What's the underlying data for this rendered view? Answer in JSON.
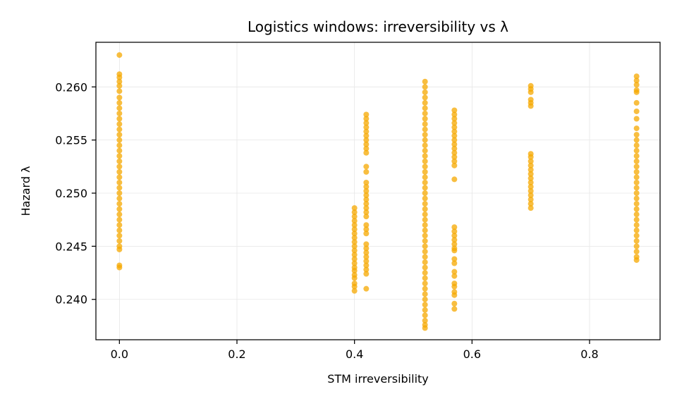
{
  "chart_data": {
    "type": "scatter",
    "title": "Logistics windows: irreversibility vs λ",
    "xlabel": "STM irreversibility",
    "ylabel": "Hazard λ",
    "xlim": [
      -0.04,
      0.92
    ],
    "ylim": [
      0.2362,
      0.2642
    ],
    "xticks": [
      0.0,
      0.2,
      0.4,
      0.6,
      0.8
    ],
    "xtick_labels": [
      "0.0",
      "0.2",
      "0.4",
      "0.6",
      "0.8"
    ],
    "yticks": [
      0.24,
      0.245,
      0.25,
      0.255,
      0.26
    ],
    "ytick_labels": [
      "0.240",
      "0.245",
      "0.250",
      "0.255",
      "0.260"
    ],
    "grid": true,
    "marker_color": "#f5a800",
    "series": [
      {
        "points": [
          [
            0.0,
            0.263
          ],
          [
            0.0,
            0.2612
          ],
          [
            0.0,
            0.2609
          ],
          [
            0.0,
            0.2605
          ],
          [
            0.0,
            0.2601
          ],
          [
            0.0,
            0.2596
          ],
          [
            0.0,
            0.259
          ],
          [
            0.0,
            0.2585
          ],
          [
            0.0,
            0.258
          ],
          [
            0.0,
            0.2575
          ],
          [
            0.0,
            0.257
          ],
          [
            0.0,
            0.2565
          ],
          [
            0.0,
            0.256
          ],
          [
            0.0,
            0.2555
          ],
          [
            0.0,
            0.255
          ],
          [
            0.0,
            0.2545
          ],
          [
            0.0,
            0.254
          ],
          [
            0.0,
            0.2535
          ],
          [
            0.0,
            0.253
          ],
          [
            0.0,
            0.2525
          ],
          [
            0.0,
            0.252
          ],
          [
            0.0,
            0.2515
          ],
          [
            0.0,
            0.251
          ],
          [
            0.0,
            0.2505
          ],
          [
            0.0,
            0.25
          ],
          [
            0.0,
            0.2495
          ],
          [
            0.0,
            0.249
          ],
          [
            0.0,
            0.2485
          ],
          [
            0.0,
            0.248
          ],
          [
            0.0,
            0.2475
          ],
          [
            0.0,
            0.247
          ],
          [
            0.0,
            0.2465
          ],
          [
            0.0,
            0.246
          ],
          [
            0.0,
            0.2455
          ],
          [
            0.0,
            0.245
          ],
          [
            0.0,
            0.2447
          ],
          [
            0.0,
            0.2432
          ],
          [
            0.0,
            0.243
          ],
          [
            0.4,
            0.2486
          ],
          [
            0.4,
            0.2482
          ],
          [
            0.4,
            0.2478
          ],
          [
            0.4,
            0.2474
          ],
          [
            0.4,
            0.247
          ],
          [
            0.4,
            0.2466
          ],
          [
            0.4,
            0.2462
          ],
          [
            0.4,
            0.2458
          ],
          [
            0.4,
            0.2454
          ],
          [
            0.4,
            0.245
          ],
          [
            0.4,
            0.2446
          ],
          [
            0.4,
            0.2442
          ],
          [
            0.4,
            0.2438
          ],
          [
            0.4,
            0.2434
          ],
          [
            0.4,
            0.243
          ],
          [
            0.4,
            0.2427
          ],
          [
            0.4,
            0.2423
          ],
          [
            0.4,
            0.242
          ],
          [
            0.4,
            0.2415
          ],
          [
            0.4,
            0.2412
          ],
          [
            0.4,
            0.2408
          ],
          [
            0.42,
            0.2574
          ],
          [
            0.42,
            0.257
          ],
          [
            0.42,
            0.2566
          ],
          [
            0.42,
            0.2562
          ],
          [
            0.42,
            0.2558
          ],
          [
            0.42,
            0.2554
          ],
          [
            0.42,
            0.255
          ],
          [
            0.42,
            0.2546
          ],
          [
            0.42,
            0.2542
          ],
          [
            0.42,
            0.2538
          ],
          [
            0.42,
            0.2525
          ],
          [
            0.42,
            0.252
          ],
          [
            0.42,
            0.251
          ],
          [
            0.42,
            0.2506
          ],
          [
            0.42,
            0.2502
          ],
          [
            0.42,
            0.2498
          ],
          [
            0.42,
            0.2494
          ],
          [
            0.42,
            0.249
          ],
          [
            0.42,
            0.2486
          ],
          [
            0.42,
            0.2482
          ],
          [
            0.42,
            0.2478
          ],
          [
            0.42,
            0.247
          ],
          [
            0.42,
            0.2466
          ],
          [
            0.42,
            0.2462
          ],
          [
            0.42,
            0.2452
          ],
          [
            0.42,
            0.2448
          ],
          [
            0.42,
            0.2444
          ],
          [
            0.42,
            0.244
          ],
          [
            0.42,
            0.2436
          ],
          [
            0.42,
            0.2432
          ],
          [
            0.42,
            0.2428
          ],
          [
            0.42,
            0.2424
          ],
          [
            0.42,
            0.241
          ],
          [
            0.52,
            0.2605
          ],
          [
            0.52,
            0.26
          ],
          [
            0.52,
            0.2595
          ],
          [
            0.52,
            0.259
          ],
          [
            0.52,
            0.2585
          ],
          [
            0.52,
            0.258
          ],
          [
            0.52,
            0.2575
          ],
          [
            0.52,
            0.257
          ],
          [
            0.52,
            0.2565
          ],
          [
            0.52,
            0.256
          ],
          [
            0.52,
            0.2555
          ],
          [
            0.52,
            0.255
          ],
          [
            0.52,
            0.2545
          ],
          [
            0.52,
            0.254
          ],
          [
            0.52,
            0.2535
          ],
          [
            0.52,
            0.253
          ],
          [
            0.52,
            0.2525
          ],
          [
            0.52,
            0.252
          ],
          [
            0.52,
            0.2515
          ],
          [
            0.52,
            0.251
          ],
          [
            0.52,
            0.2505
          ],
          [
            0.52,
            0.25
          ],
          [
            0.52,
            0.2495
          ],
          [
            0.52,
            0.249
          ],
          [
            0.52,
            0.2485
          ],
          [
            0.52,
            0.248
          ],
          [
            0.52,
            0.2475
          ],
          [
            0.52,
            0.247
          ],
          [
            0.52,
            0.2465
          ],
          [
            0.52,
            0.246
          ],
          [
            0.52,
            0.2455
          ],
          [
            0.52,
            0.245
          ],
          [
            0.52,
            0.2445
          ],
          [
            0.52,
            0.244
          ],
          [
            0.52,
            0.2435
          ],
          [
            0.52,
            0.243
          ],
          [
            0.52,
            0.2425
          ],
          [
            0.52,
            0.242
          ],
          [
            0.52,
            0.2415
          ],
          [
            0.52,
            0.241
          ],
          [
            0.52,
            0.2405
          ],
          [
            0.52,
            0.24
          ],
          [
            0.52,
            0.2395
          ],
          [
            0.52,
            0.239
          ],
          [
            0.52,
            0.2385
          ],
          [
            0.52,
            0.238
          ],
          [
            0.52,
            0.2376
          ],
          [
            0.52,
            0.2373
          ],
          [
            0.57,
            0.2578
          ],
          [
            0.57,
            0.2574
          ],
          [
            0.57,
            0.257
          ],
          [
            0.57,
            0.2566
          ],
          [
            0.57,
            0.2562
          ],
          [
            0.57,
            0.2558
          ],
          [
            0.57,
            0.2554
          ],
          [
            0.57,
            0.255
          ],
          [
            0.57,
            0.2546
          ],
          [
            0.57,
            0.2542
          ],
          [
            0.57,
            0.2538
          ],
          [
            0.57,
            0.2534
          ],
          [
            0.57,
            0.253
          ],
          [
            0.57,
            0.2526
          ],
          [
            0.57,
            0.2513
          ],
          [
            0.57,
            0.2468
          ],
          [
            0.57,
            0.2464
          ],
          [
            0.57,
            0.246
          ],
          [
            0.57,
            0.2456
          ],
          [
            0.57,
            0.2452
          ],
          [
            0.57,
            0.2448
          ],
          [
            0.57,
            0.2446
          ],
          [
            0.57,
            0.2438
          ],
          [
            0.57,
            0.2434
          ],
          [
            0.57,
            0.2426
          ],
          [
            0.57,
            0.2422
          ],
          [
            0.57,
            0.2415
          ],
          [
            0.57,
            0.2412
          ],
          [
            0.57,
            0.2407
          ],
          [
            0.57,
            0.2404
          ],
          [
            0.57,
            0.2396
          ],
          [
            0.57,
            0.2391
          ],
          [
            0.7,
            0.2601
          ],
          [
            0.7,
            0.2598
          ],
          [
            0.7,
            0.2595
          ],
          [
            0.7,
            0.2588
          ],
          [
            0.7,
            0.2585
          ],
          [
            0.7,
            0.2582
          ],
          [
            0.7,
            0.2537
          ],
          [
            0.7,
            0.2534
          ],
          [
            0.7,
            0.253
          ],
          [
            0.7,
            0.2526
          ],
          [
            0.7,
            0.2522
          ],
          [
            0.7,
            0.2518
          ],
          [
            0.7,
            0.2514
          ],
          [
            0.7,
            0.251
          ],
          [
            0.7,
            0.2506
          ],
          [
            0.7,
            0.2502
          ],
          [
            0.7,
            0.2498
          ],
          [
            0.7,
            0.2494
          ],
          [
            0.7,
            0.249
          ],
          [
            0.7,
            0.2486
          ],
          [
            0.88,
            0.261
          ],
          [
            0.88,
            0.2606
          ],
          [
            0.88,
            0.2602
          ],
          [
            0.88,
            0.2597
          ],
          [
            0.88,
            0.2595
          ],
          [
            0.88,
            0.2585
          ],
          [
            0.88,
            0.2577
          ],
          [
            0.88,
            0.257
          ],
          [
            0.88,
            0.2561
          ],
          [
            0.88,
            0.2555
          ],
          [
            0.88,
            0.255
          ],
          [
            0.88,
            0.2545
          ],
          [
            0.88,
            0.254
          ],
          [
            0.88,
            0.2535
          ],
          [
            0.88,
            0.253
          ],
          [
            0.88,
            0.2525
          ],
          [
            0.88,
            0.252
          ],
          [
            0.88,
            0.2515
          ],
          [
            0.88,
            0.251
          ],
          [
            0.88,
            0.2505
          ],
          [
            0.88,
            0.25
          ],
          [
            0.88,
            0.2495
          ],
          [
            0.88,
            0.249
          ],
          [
            0.88,
            0.2485
          ],
          [
            0.88,
            0.248
          ],
          [
            0.88,
            0.2475
          ],
          [
            0.88,
            0.247
          ],
          [
            0.88,
            0.2465
          ],
          [
            0.88,
            0.246
          ],
          [
            0.88,
            0.2455
          ],
          [
            0.88,
            0.245
          ],
          [
            0.88,
            0.2445
          ],
          [
            0.88,
            0.244
          ],
          [
            0.88,
            0.2437
          ]
        ]
      }
    ]
  }
}
